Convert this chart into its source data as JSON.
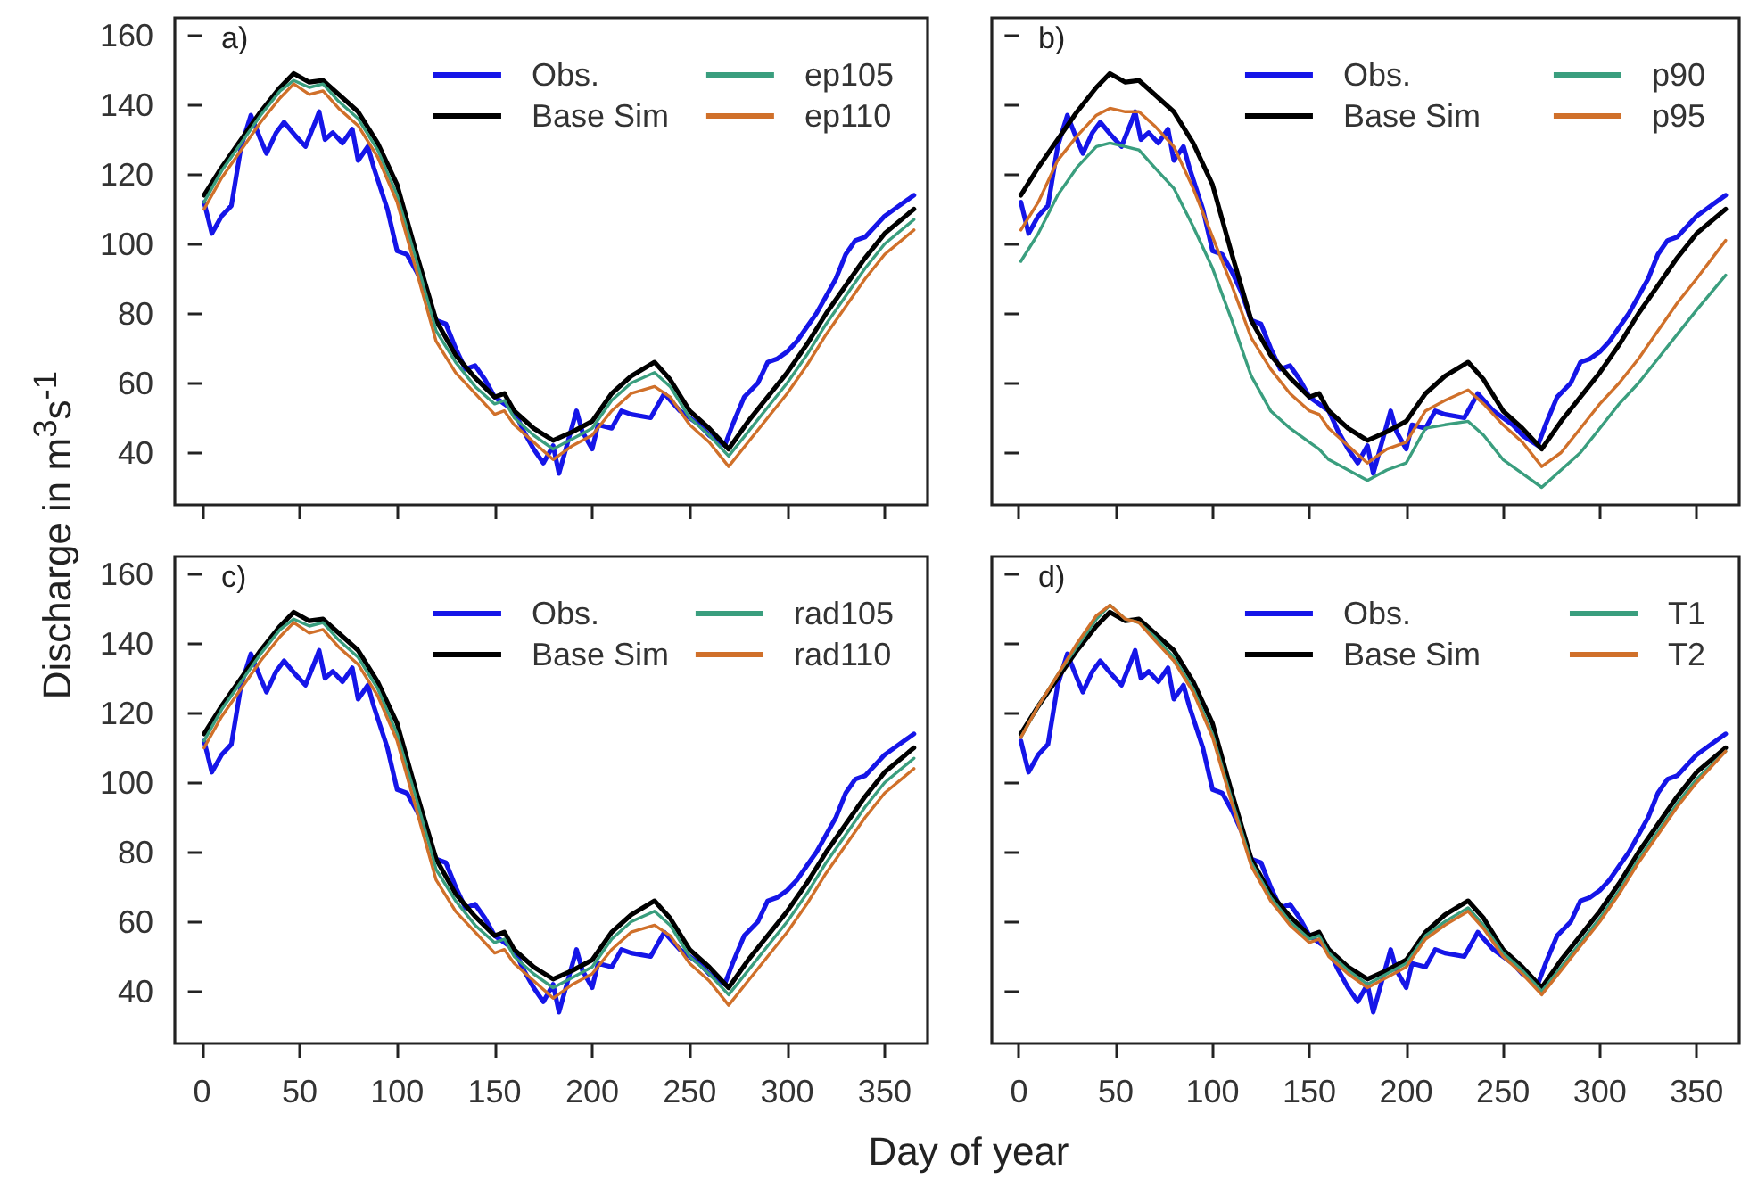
{
  "chart_data": [
    {
      "type": "line",
      "annotations": [
        "a)"
      ],
      "ylabel": "Discharge in m$^{3}$s$^{-1}$",
      "xlim": [
        -14,
        372
      ],
      "xticks": [
        0,
        50,
        100,
        150,
        200,
        250,
        300,
        350
      ],
      "ylim": [
        25,
        165
      ],
      "yticks": [
        40,
        60,
        80,
        100,
        120,
        140,
        160
      ],
      "tick_labels": "y",
      "legend": "top right",
      "x": [
        1,
        10,
        20,
        30,
        40,
        47,
        55,
        62,
        70,
        80,
        90,
        100,
        110,
        120,
        130,
        140,
        150,
        155,
        160,
        170,
        180,
        190,
        200,
        210,
        220,
        232,
        240,
        250,
        260,
        270,
        280,
        290,
        300,
        310,
        320,
        330,
        340,
        350,
        365
      ],
      "series": [
        {
          "name": "Obs.",
          "color": "#1515e8",
          "x": [
            1,
            5,
            10,
            15,
            20,
            25,
            30,
            33,
            38,
            42,
            48,
            53,
            58,
            60,
            63,
            67,
            72,
            77,
            80,
            85,
            88,
            95,
            100,
            105,
            110,
            115,
            120,
            125,
            130,
            135,
            140,
            145,
            150,
            155,
            160,
            165,
            170,
            175,
            180,
            183,
            188,
            192,
            195,
            200,
            203,
            210,
            215,
            220,
            230,
            237,
            245,
            255,
            260,
            268,
            272,
            278,
            285,
            290,
            295,
            300,
            305,
            310,
            315,
            320,
            325,
            330,
            335,
            340,
            345,
            350,
            355,
            360,
            365
          ],
          "values": [
            112,
            103,
            108,
            111,
            128,
            137,
            130,
            126,
            132,
            135,
            131,
            128,
            135,
            138,
            130,
            132,
            129,
            133,
            124,
            128,
            122,
            110,
            98,
            97,
            92,
            86,
            78,
            77,
            70,
            64,
            65,
            61,
            56,
            54,
            52,
            46,
            41,
            37,
            42,
            34,
            44,
            52,
            46,
            41,
            48,
            47,
            52,
            51,
            50,
            57,
            52,
            48,
            45,
            42,
            48,
            56,
            60,
            66,
            67,
            69,
            72,
            76,
            80,
            85,
            90,
            97,
            101,
            102,
            105,
            108,
            110,
            112,
            114
          ]
        },
        {
          "name": "Base Sim",
          "color": "#000000",
          "values": [
            114,
            122,
            130,
            138,
            145,
            149,
            146.5,
            147,
            143,
            138,
            129,
            117,
            97,
            78,
            68,
            61.5,
            56,
            57,
            52,
            47,
            43.5,
            46,
            49,
            57,
            62,
            66,
            61,
            52,
            47,
            41,
            49,
            56,
            63,
            71,
            80,
            88,
            96,
            103,
            110
          ]
        },
        {
          "name": "ep105",
          "color": "#3a9e7e",
          "values": [
            112,
            121,
            129,
            137,
            144,
            147,
            145,
            146,
            141,
            136,
            127,
            114,
            95,
            75,
            66,
            59,
            54,
            55,
            50,
            45,
            41,
            44,
            47,
            55,
            60,
            63,
            59,
            50,
            45,
            39,
            46,
            53,
            60,
            68,
            77,
            85,
            93,
            100,
            107
          ]
        },
        {
          "name": "ep110",
          "color": "#d0702a",
          "values": [
            110,
            119,
            127,
            135,
            142,
            146,
            143,
            144,
            139,
            134,
            125,
            112,
            92,
            72,
            63,
            57,
            51,
            52,
            48,
            43,
            38,
            42,
            45,
            52,
            57,
            59,
            56,
            48,
            43,
            36,
            43,
            50,
            57,
            65,
            74,
            82,
            90,
            97,
            104
          ]
        }
      ]
    },
    {
      "type": "line",
      "annotations": [
        "b)"
      ],
      "xlim": [
        -14,
        372
      ],
      "xticks": [
        0,
        50,
        100,
        150,
        200,
        250,
        300,
        350
      ],
      "ylim": [
        25,
        165
      ],
      "yticks": [
        40,
        60,
        80,
        100,
        120,
        140,
        160
      ],
      "tick_labels": false,
      "legend": "top right",
      "x": [
        1,
        10,
        20,
        30,
        40,
        47,
        55,
        62,
        70,
        80,
        90,
        100,
        110,
        120,
        130,
        140,
        150,
        155,
        160,
        170,
        180,
        190,
        200,
        210,
        220,
        232,
        240,
        250,
        260,
        270,
        280,
        290,
        300,
        310,
        320,
        330,
        340,
        350,
        365
      ],
      "series": [
        {
          "name": "Obs.",
          "color": "#1515e8",
          "x": [
            1,
            5,
            10,
            15,
            20,
            25,
            30,
            33,
            38,
            42,
            48,
            53,
            58,
            60,
            63,
            67,
            72,
            77,
            80,
            85,
            88,
            95,
            100,
            105,
            110,
            115,
            120,
            125,
            130,
            135,
            140,
            145,
            150,
            155,
            160,
            165,
            170,
            175,
            180,
            183,
            188,
            192,
            195,
            200,
            203,
            210,
            215,
            220,
            230,
            237,
            245,
            255,
            260,
            268,
            272,
            278,
            285,
            290,
            295,
            300,
            305,
            310,
            315,
            320,
            325,
            330,
            335,
            340,
            345,
            350,
            355,
            360,
            365
          ],
          "values": [
            112,
            103,
            108,
            111,
            128,
            137,
            130,
            126,
            132,
            135,
            131,
            128,
            135,
            138,
            130,
            132,
            129,
            133,
            124,
            128,
            122,
            110,
            98,
            97,
            92,
            86,
            78,
            77,
            70,
            64,
            65,
            61,
            56,
            54,
            52,
            46,
            41,
            37,
            42,
            34,
            44,
            52,
            46,
            41,
            48,
            47,
            52,
            51,
            50,
            57,
            52,
            48,
            45,
            42,
            48,
            56,
            60,
            66,
            67,
            69,
            72,
            76,
            80,
            85,
            90,
            97,
            101,
            102,
            105,
            108,
            110,
            112,
            114
          ]
        },
        {
          "name": "Base Sim",
          "color": "#000000",
          "values": [
            114,
            122,
            130,
            138,
            145,
            149,
            146.5,
            147,
            143,
            138,
            129,
            117,
            97,
            78,
            68,
            61.5,
            56,
            57,
            52,
            47,
            43.5,
            46,
            49,
            57,
            62,
            66,
            61,
            52,
            47,
            41,
            49,
            56,
            63,
            71,
            80,
            88,
            96,
            103,
            110
          ]
        },
        {
          "name": "p90",
          "color": "#3a9e7e",
          "values": [
            95,
            103,
            114,
            122,
            128,
            129,
            128,
            127,
            122,
            116,
            105,
            93,
            78,
            62,
            52,
            47,
            43,
            41,
            38,
            35,
            32,
            35,
            37,
            47,
            48,
            49,
            45,
            38,
            34,
            30,
            35,
            40,
            47,
            54,
            60,
            67,
            74,
            81,
            91
          ]
        },
        {
          "name": "p95",
          "color": "#d0702a",
          "values": [
            104,
            112,
            124,
            131,
            137,
            139,
            138,
            138,
            134,
            128,
            116,
            102,
            88,
            73,
            64,
            57,
            52,
            51,
            47,
            42,
            37,
            41,
            43,
            52,
            55,
            58,
            54,
            48,
            43,
            36,
            40,
            47,
            54,
            60,
            67,
            75,
            83,
            90,
            101
          ]
        }
      ]
    },
    {
      "type": "line",
      "annotations": [
        "c)"
      ],
      "xlabel": "Day of year",
      "xlim": [
        -14,
        372
      ],
      "xticks": [
        0,
        50,
        100,
        150,
        200,
        250,
        300,
        350
      ],
      "ylim": [
        25,
        165
      ],
      "yticks": [
        40,
        60,
        80,
        100,
        120,
        140,
        160
      ],
      "legend": "top right",
      "x": [
        1,
        10,
        20,
        30,
        40,
        47,
        55,
        62,
        70,
        80,
        90,
        100,
        110,
        120,
        130,
        140,
        150,
        155,
        160,
        170,
        180,
        190,
        200,
        210,
        220,
        232,
        240,
        250,
        260,
        270,
        280,
        290,
        300,
        310,
        320,
        330,
        340,
        350,
        365
      ],
      "series": [
        {
          "name": "Obs.",
          "color": "#1515e8",
          "x": [
            1,
            5,
            10,
            15,
            20,
            25,
            30,
            33,
            38,
            42,
            48,
            53,
            58,
            60,
            63,
            67,
            72,
            77,
            80,
            85,
            88,
            95,
            100,
            105,
            110,
            115,
            120,
            125,
            130,
            135,
            140,
            145,
            150,
            155,
            160,
            165,
            170,
            175,
            180,
            183,
            188,
            192,
            195,
            200,
            203,
            210,
            215,
            220,
            230,
            237,
            245,
            255,
            260,
            268,
            272,
            278,
            285,
            290,
            295,
            300,
            305,
            310,
            315,
            320,
            325,
            330,
            335,
            340,
            345,
            350,
            355,
            360,
            365
          ],
          "values": [
            112,
            103,
            108,
            111,
            128,
            137,
            130,
            126,
            132,
            135,
            131,
            128,
            135,
            138,
            130,
            132,
            129,
            133,
            124,
            128,
            122,
            110,
            98,
            97,
            92,
            86,
            78,
            77,
            70,
            64,
            65,
            61,
            56,
            54,
            52,
            46,
            41,
            37,
            42,
            34,
            44,
            52,
            46,
            41,
            48,
            47,
            52,
            51,
            50,
            57,
            52,
            48,
            45,
            42,
            48,
            56,
            60,
            66,
            67,
            69,
            72,
            76,
            80,
            85,
            90,
            97,
            101,
            102,
            105,
            108,
            110,
            112,
            114
          ]
        },
        {
          "name": "Base Sim",
          "color": "#000000",
          "values": [
            114,
            122,
            130,
            138,
            145,
            149,
            146.5,
            147,
            143,
            138,
            129,
            117,
            97,
            78,
            68,
            61.5,
            56,
            57,
            52,
            47,
            43.5,
            46,
            49,
            57,
            62,
            66,
            61,
            52,
            47,
            41,
            49,
            56,
            63,
            71,
            80,
            88,
            96,
            103,
            110
          ]
        },
        {
          "name": "rad105",
          "color": "#3a9e7e",
          "values": [
            112,
            121,
            129,
            137,
            144,
            147,
            145,
            146,
            141,
            136,
            127,
            114,
            95,
            75,
            66,
            59,
            54,
            55,
            50,
            45,
            41,
            44,
            47,
            55,
            60,
            63,
            59,
            50,
            45,
            39,
            46,
            53,
            60,
            68,
            77,
            85,
            93,
            100,
            107
          ]
        },
        {
          "name": "rad110",
          "color": "#d0702a",
          "values": [
            110,
            119,
            127,
            135,
            142,
            146,
            143,
            144,
            139,
            134,
            125,
            112,
            92,
            72,
            63,
            57,
            51,
            52,
            48,
            43,
            38,
            42,
            45,
            52,
            57,
            59,
            56,
            48,
            43,
            36,
            43,
            50,
            57,
            65,
            74,
            82,
            90,
            97,
            104
          ]
        }
      ]
    },
    {
      "type": "line",
      "annotations": [
        "d)"
      ],
      "xlim": [
        -14,
        372
      ],
      "xticks": [
        0,
        50,
        100,
        150,
        200,
        250,
        300,
        350
      ],
      "ylim": [
        25,
        165
      ],
      "yticks": [
        40,
        60,
        80,
        100,
        120,
        140,
        160
      ],
      "tick_labels": "x",
      "legend": "top right",
      "x": [
        1,
        10,
        20,
        30,
        40,
        47,
        55,
        62,
        70,
        80,
        90,
        100,
        110,
        120,
        130,
        140,
        150,
        155,
        160,
        170,
        180,
        190,
        200,
        210,
        220,
        232,
        240,
        250,
        260,
        270,
        280,
        290,
        300,
        310,
        320,
        330,
        340,
        350,
        365
      ],
      "series": [
        {
          "name": "Obs.",
          "color": "#1515e8",
          "x": [
            1,
            5,
            10,
            15,
            20,
            25,
            30,
            33,
            38,
            42,
            48,
            53,
            58,
            60,
            63,
            67,
            72,
            77,
            80,
            85,
            88,
            95,
            100,
            105,
            110,
            115,
            120,
            125,
            130,
            135,
            140,
            145,
            150,
            155,
            160,
            165,
            170,
            175,
            180,
            183,
            188,
            192,
            195,
            200,
            203,
            210,
            215,
            220,
            230,
            237,
            245,
            255,
            260,
            268,
            272,
            278,
            285,
            290,
            295,
            300,
            305,
            310,
            315,
            320,
            325,
            330,
            335,
            340,
            345,
            350,
            355,
            360,
            365
          ],
          "values": [
            112,
            103,
            108,
            111,
            128,
            137,
            130,
            126,
            132,
            135,
            131,
            128,
            135,
            138,
            130,
            132,
            129,
            133,
            124,
            128,
            122,
            110,
            98,
            97,
            92,
            86,
            78,
            77,
            70,
            64,
            65,
            61,
            56,
            54,
            52,
            46,
            41,
            37,
            42,
            34,
            44,
            52,
            46,
            41,
            48,
            47,
            52,
            51,
            50,
            57,
            52,
            48,
            45,
            42,
            48,
            56,
            60,
            66,
            67,
            69,
            72,
            76,
            80,
            85,
            90,
            97,
            101,
            102,
            105,
            108,
            110,
            112,
            114
          ]
        },
        {
          "name": "Base Sim",
          "color": "#000000",
          "values": [
            114,
            122,
            130,
            138,
            145,
            149,
            146.5,
            147,
            143,
            138,
            129,
            117,
            97,
            78,
            68,
            61.5,
            56,
            57,
            52,
            47,
            43.5,
            46,
            49,
            57,
            62,
            66,
            61,
            52,
            47,
            41,
            49,
            56,
            63,
            71,
            80,
            88,
            96,
            103,
            110
          ]
        },
        {
          "name": "T1",
          "color": "#3a9e7e",
          "values": [
            113,
            122,
            131,
            139,
            147,
            151,
            147,
            146,
            142,
            136,
            127,
            114,
            95,
            77,
            67,
            60,
            55,
            56,
            51,
            46,
            42,
            45,
            48,
            56,
            60,
            64,
            59,
            51,
            46,
            40,
            47,
            54,
            61,
            69,
            78,
            86,
            94,
            101,
            109
          ]
        },
        {
          "name": "T2",
          "color": "#d0702a",
          "values": [
            113,
            122,
            131,
            140,
            148,
            151,
            147,
            146,
            141,
            135,
            126,
            113,
            94,
            76,
            66,
            59,
            54,
            55,
            50,
            45,
            41,
            44,
            47,
            55,
            59,
            63,
            58,
            50,
            45,
            39,
            46,
            53,
            60,
            68,
            77,
            85,
            93,
            100,
            109
          ]
        }
      ]
    }
  ]
}
